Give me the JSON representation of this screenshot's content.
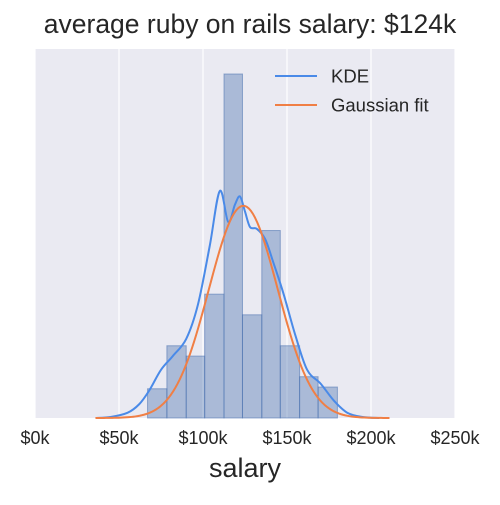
{
  "chart_data": {
    "type": "bar",
    "title": "average ruby on rails salary: $124k",
    "xlabel": "salary",
    "ylabel": "",
    "xlim": [
      0,
      250000
    ],
    "ylim": [
      0,
      1
    ],
    "x_ticks": [
      0,
      50000,
      100000,
      150000,
      200000,
      250000
    ],
    "x_tick_labels": [
      "$0k",
      "$50k",
      "$100k",
      "$150k",
      "$200k",
      "$250k"
    ],
    "grid": true,
    "legend_position": "top-right",
    "histogram": {
      "bin_edges": [
        67000,
        78500,
        90000,
        101000,
        112500,
        123500,
        135000,
        146000,
        157500,
        168500,
        180000
      ],
      "heights": [
        0.085,
        0.21,
        0.18,
        0.36,
        1.0,
        0.3,
        0.545,
        0.21,
        0.12,
        0.09
      ],
      "color": "#4c72b0"
    },
    "series": [
      {
        "name": "KDE",
        "type": "line",
        "color": "#4a8ae8",
        "x": [
          36000,
          45000,
          55000,
          62000,
          68000,
          75000,
          82000,
          90000,
          97000,
          104000,
          110000,
          115000,
          119000,
          122000,
          125000,
          128000,
          132000,
          137000,
          142000,
          148000,
          155000,
          162000,
          170000,
          178000,
          186000,
          195000,
          205000
        ],
        "y": [
          0.0,
          0.003,
          0.015,
          0.04,
          0.08,
          0.14,
          0.18,
          0.23,
          0.33,
          0.5,
          0.66,
          0.57,
          0.62,
          0.644,
          0.6,
          0.555,
          0.55,
          0.52,
          0.45,
          0.36,
          0.24,
          0.14,
          0.1,
          0.05,
          0.015,
          0.003,
          0.0
        ]
      },
      {
        "name": "Gaussian fit",
        "type": "line",
        "color": "#f07f45",
        "mean": 124000,
        "sd": 20500,
        "peak": 0.617,
        "x_range": [
          36000,
          211000
        ]
      }
    ]
  }
}
